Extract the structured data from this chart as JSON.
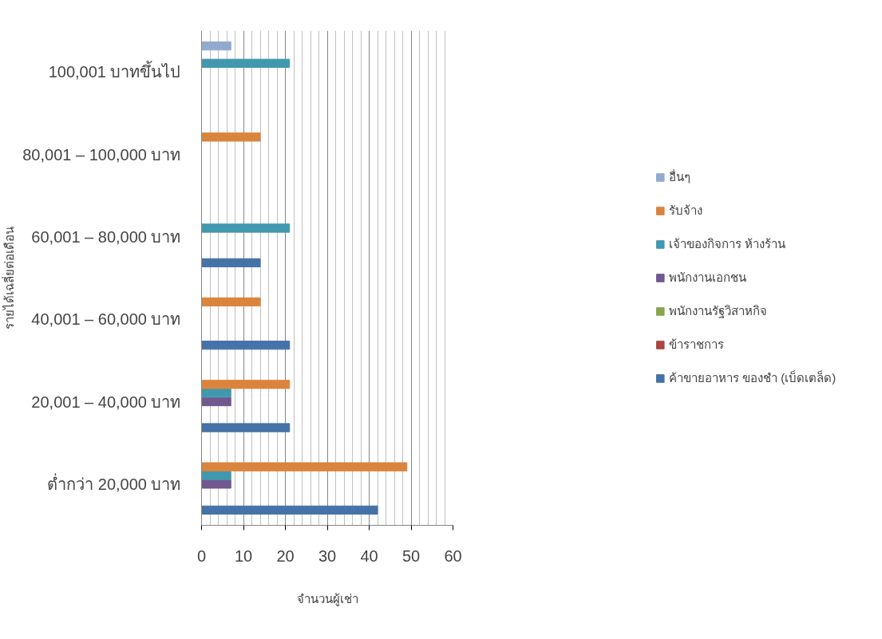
{
  "chart_data": {
    "type": "bar",
    "orientation": "horizontal",
    "xlabel": "จำนวนผู้เช่า",
    "ylabel": "รายได้เฉลี่ยต่อเดือน",
    "categories": [
      "100,001 บาทขึ้นไป",
      "80,001 – 100,000 บาท",
      "60,001 – 80,000 บาท",
      "40,001 – 60,000 บาท",
      "20,001 – 40,000 บาท",
      "ต่ำกว่า 20,000 บาท"
    ],
    "series": [
      {
        "name": "ค้าขายอาหาร ของชำ (เบ็ดเตล็ด)",
        "color": "#4572a7",
        "values": [
          0,
          0,
          14,
          21,
          21,
          42
        ]
      },
      {
        "name": "ข้าราชการ",
        "color": "#aa4643",
        "values": [
          0,
          0,
          0,
          0,
          0,
          0
        ]
      },
      {
        "name": "พนักงานรัฐวิสาหกิจ",
        "color": "#89a54e",
        "values": [
          0,
          0,
          0,
          0,
          0,
          0
        ]
      },
      {
        "name": "พนักงานเอกชน",
        "color": "#71588f",
        "values": [
          0,
          0,
          0,
          0,
          7,
          7
        ]
      },
      {
        "name": "เจ้าของกิจการ ห้างร้าน",
        "color": "#4198af",
        "values": [
          21,
          0,
          21,
          0,
          7,
          7
        ]
      },
      {
        "name": "รับจ้าง",
        "color": "#db843d",
        "values": [
          0,
          14,
          0,
          14,
          21,
          49
        ]
      },
      {
        "name": "อื่นๆ",
        "color": "#93a9cf",
        "values": [
          7,
          0,
          0,
          0,
          0,
          0
        ]
      }
    ],
    "xlim": [
      0,
      60
    ],
    "xticks": [
      0,
      10,
      20,
      30,
      40,
      50,
      60
    ],
    "grid": "x",
    "legend": "right"
  }
}
